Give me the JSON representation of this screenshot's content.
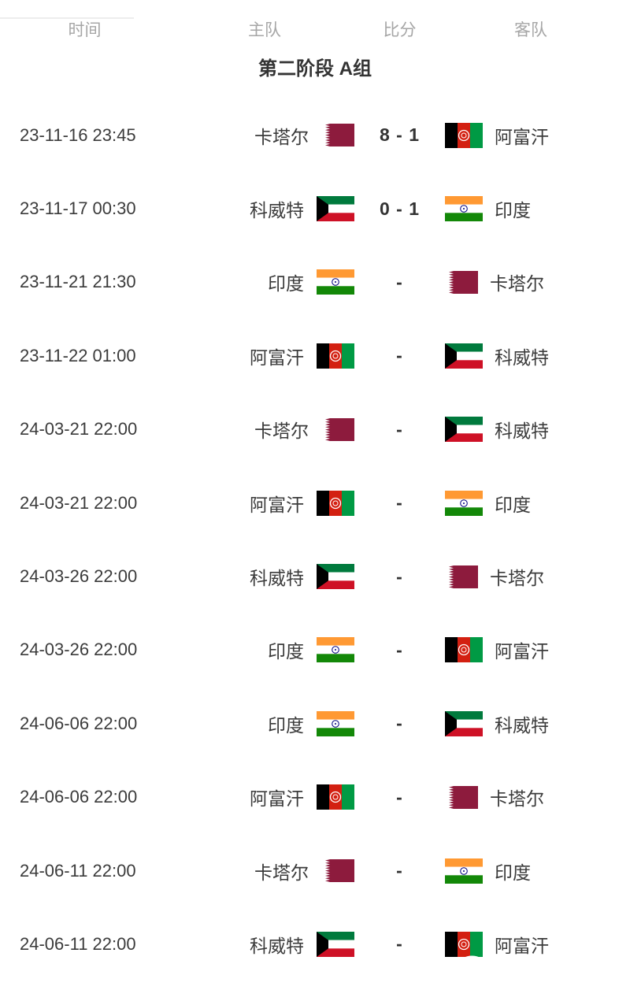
{
  "header": {
    "time": "时间",
    "home": "主队",
    "score": "比分",
    "away": "客队"
  },
  "section_title": "第二阶段 A组",
  "teams": {
    "QAT": {
      "name": "卡塔尔",
      "flag": "flag-qatar"
    },
    "AFG": {
      "name": "阿富汗",
      "flag": "flag-afghanistan"
    },
    "KUW": {
      "name": "科威特",
      "flag": "flag-kuwait"
    },
    "IND": {
      "name": "印度",
      "flag": "flag-india"
    }
  },
  "matches": [
    {
      "time": "23-11-16 23:45",
      "home": "QAT",
      "score": "8 - 1",
      "away": "AFG"
    },
    {
      "time": "23-11-17 00:30",
      "home": "KUW",
      "score": "0 - 1",
      "away": "IND"
    },
    {
      "time": "23-11-21 21:30",
      "home": "IND",
      "score": "-",
      "away": "QAT"
    },
    {
      "time": "23-11-22 01:00",
      "home": "AFG",
      "score": "-",
      "away": "KUW"
    },
    {
      "time": "24-03-21 22:00",
      "home": "QAT",
      "score": "-",
      "away": "KUW"
    },
    {
      "time": "24-03-21 22:00",
      "home": "AFG",
      "score": "-",
      "away": "IND"
    },
    {
      "time": "24-03-26 22:00",
      "home": "KUW",
      "score": "-",
      "away": "QAT"
    },
    {
      "time": "24-03-26 22:00",
      "home": "IND",
      "score": "-",
      "away": "AFG"
    },
    {
      "time": "24-06-06 22:00",
      "home": "IND",
      "score": "-",
      "away": "KUW"
    },
    {
      "time": "24-06-06 22:00",
      "home": "AFG",
      "score": "-",
      "away": "QAT"
    },
    {
      "time": "24-06-11 22:00",
      "home": "QAT",
      "score": "-",
      "away": "IND"
    },
    {
      "time": "24-06-11 22:00",
      "home": "KUW",
      "score": "-",
      "away": "AFG"
    }
  ],
  "watermark": {
    "glyph": "@"
  },
  "colors": {
    "header_text": "#a6a6a6",
    "body_text": "#3b3b3b",
    "title_text": "#333333",
    "qatar_maroon": "#8d1b3d",
    "kuwait_green": "#007a3d",
    "kuwait_red": "#ce1126",
    "india_saffron": "#ff9933",
    "india_green": "#138808",
    "india_navy": "#000080",
    "afghan_red": "#d32011",
    "afghan_green": "#009a44"
  }
}
